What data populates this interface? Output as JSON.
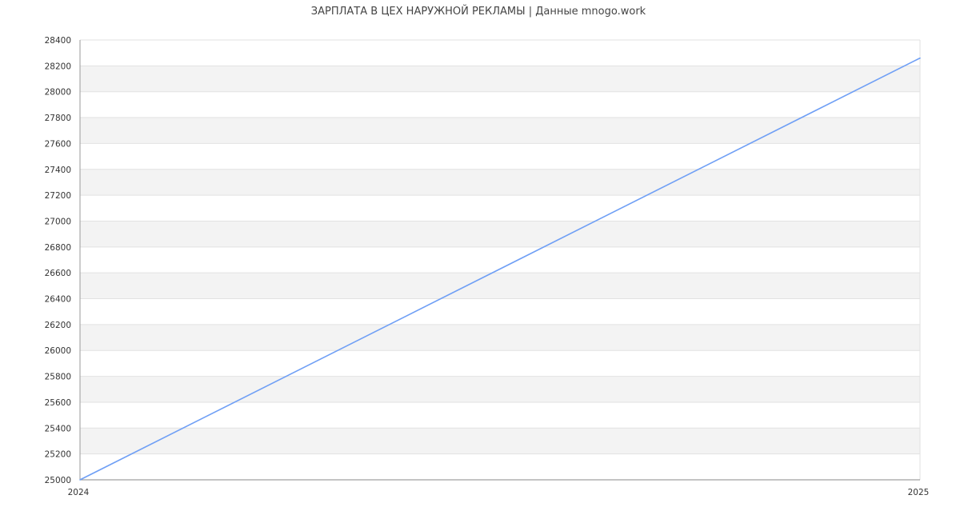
{
  "chart_data": {
    "type": "line",
    "title": "ЗАРПЛАТА В  ЦЕХ НАРУЖНОЙ РЕКЛАМЫ | Данные mnogo.work",
    "xlabel": "",
    "ylabel": "",
    "x": [
      "2024",
      "2025"
    ],
    "series": [
      {
        "values": [
          25000,
          28260
        ],
        "color": "#6f9ff5"
      }
    ],
    "ylim": [
      25000,
      28400
    ],
    "yticks": [
      25000,
      25200,
      25400,
      25600,
      25800,
      26000,
      26200,
      26400,
      26600,
      26800,
      27000,
      27200,
      27400,
      27600,
      27800,
      28000,
      28200,
      28400
    ],
    "grid": true,
    "band_color": "#f3f3f3",
    "legend": "none"
  }
}
